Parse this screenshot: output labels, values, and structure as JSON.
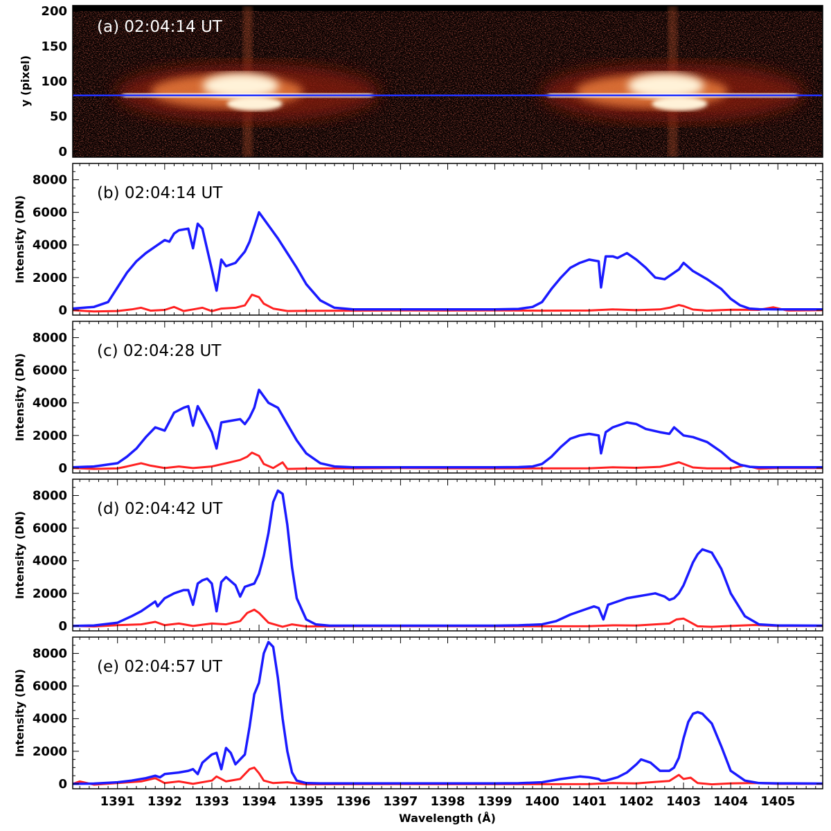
{
  "figure": {
    "xlabel": "Wavelength (Å)",
    "x_ticks": [
      1391,
      1392,
      1393,
      1394,
      1395,
      1396,
      1397,
      1398,
      1399,
      1400,
      1401,
      1402,
      1403,
      1404,
      1405
    ],
    "xlim": [
      1390.05,
      1405.95
    ]
  },
  "colors": {
    "spectrum": "#1a1aff",
    "difference": "#ff2020",
    "slit_line": "#2233ff"
  },
  "image_panel": {
    "label": "(a) 02:04:14 UT",
    "ylabel": "y (pixel)",
    "y_ticks": [
      0,
      50,
      100,
      150,
      200
    ],
    "ylim": [
      -8,
      208
    ],
    "colormap": "red-temperature",
    "slit_y": 80,
    "bright_lines_angstrom": [
      1393.76,
      1402.77
    ]
  },
  "chart_data": [
    {
      "type": "line",
      "panel": "(b) 02:04:14 UT",
      "xlabel": "",
      "ylabel": "Intensity (DN)",
      "y_ticks": [
        0,
        2000,
        4000,
        6000,
        8000
      ],
      "ylim": [
        -300,
        9000
      ],
      "series": [
        {
          "color": "#1a1aff",
          "x": [
            1390.05,
            1390.5,
            1390.8,
            1391.0,
            1391.2,
            1391.4,
            1391.6,
            1391.8,
            1392.0,
            1392.1,
            1392.2,
            1392.3,
            1392.5,
            1392.6,
            1392.7,
            1392.8,
            1393.0,
            1393.1,
            1393.2,
            1393.3,
            1393.5,
            1393.7,
            1393.8,
            1394.0,
            1394.2,
            1394.4,
            1394.6,
            1394.8,
            1395.0,
            1395.3,
            1395.6,
            1396.0,
            1397.0,
            1398.0,
            1399.0,
            1399.5,
            1399.8,
            1400.0,
            1400.2,
            1400.4,
            1400.6,
            1400.8,
            1401.0,
            1401.2,
            1401.25,
            1401.35,
            1401.5,
            1401.6,
            1401.8,
            1402.0,
            1402.2,
            1402.4,
            1402.6,
            1402.9,
            1403.0,
            1403.2,
            1403.5,
            1403.8,
            1404.0,
            1404.2,
            1404.4,
            1404.6,
            1405.0,
            1405.5,
            1405.95
          ],
          "y": [
            100,
            200,
            500,
            1400,
            2300,
            3000,
            3500,
            3900,
            4300,
            4200,
            4700,
            4900,
            5000,
            3800,
            5300,
            5000,
            2500,
            1200,
            3100,
            2700,
            2900,
            3600,
            4200,
            6000,
            5200,
            4400,
            3500,
            2600,
            1600,
            600,
            150,
            50,
            50,
            50,
            50,
            80,
            200,
            500,
            1300,
            2000,
            2600,
            2900,
            3100,
            3000,
            1400,
            3300,
            3300,
            3200,
            3500,
            3100,
            2600,
            2000,
            1900,
            2500,
            2900,
            2400,
            1900,
            1300,
            700,
            300,
            100,
            60,
            50,
            50,
            50
          ]
        },
        {
          "color": "#ff2020",
          "x": [
            1390.05,
            1390.5,
            1391.0,
            1391.3,
            1391.5,
            1391.7,
            1392.0,
            1392.2,
            1392.4,
            1392.6,
            1392.8,
            1393.0,
            1393.2,
            1393.5,
            1393.7,
            1393.85,
            1394.0,
            1394.1,
            1394.3,
            1394.6,
            1395.0,
            1396.0,
            1397.0,
            1398.0,
            1399.0,
            1400.0,
            1401.0,
            1401.5,
            1402.0,
            1402.5,
            1402.7,
            1402.9,
            1403.0,
            1403.2,
            1403.5,
            1404.0,
            1404.6,
            1404.9,
            1405.2,
            1405.95
          ],
          "y": [
            0,
            -80,
            -50,
            50,
            150,
            -30,
            20,
            200,
            -50,
            50,
            150,
            -60,
            100,
            150,
            300,
            950,
            800,
            400,
            100,
            -50,
            -40,
            -30,
            -10,
            -20,
            -10,
            -30,
            -20,
            50,
            0,
            50,
            150,
            320,
            250,
            40,
            -30,
            30,
            20,
            180,
            -20,
            0
          ]
        }
      ]
    },
    {
      "type": "line",
      "panel": "(c) 02:04:28 UT",
      "xlabel": "",
      "ylabel": "Intensity (DN)",
      "y_ticks": [
        0,
        2000,
        4000,
        6000,
        8000
      ],
      "ylim": [
        -300,
        9000
      ],
      "series": [
        {
          "color": "#1a1aff",
          "x": [
            1390.05,
            1390.5,
            1391.0,
            1391.2,
            1391.4,
            1391.6,
            1391.8,
            1392.0,
            1392.2,
            1392.4,
            1392.5,
            1392.6,
            1392.7,
            1392.8,
            1393.0,
            1393.1,
            1393.2,
            1393.4,
            1393.6,
            1393.7,
            1393.8,
            1393.9,
            1394.0,
            1394.2,
            1394.4,
            1394.6,
            1394.8,
            1395.0,
            1395.3,
            1395.6,
            1396.0,
            1397.0,
            1398.0,
            1399.0,
            1399.5,
            1399.8,
            1400.0,
            1400.2,
            1400.4,
            1400.6,
            1400.8,
            1401.0,
            1401.2,
            1401.25,
            1401.35,
            1401.5,
            1401.8,
            1402.0,
            1402.2,
            1402.5,
            1402.7,
            1402.8,
            1403.0,
            1403.2,
            1403.5,
            1403.8,
            1404.0,
            1404.2,
            1404.4,
            1404.6,
            1405.0,
            1405.5,
            1405.95
          ],
          "y": [
            50,
            100,
            300,
            700,
            1200,
            1900,
            2500,
            2300,
            3400,
            3700,
            3800,
            2600,
            3800,
            3300,
            2200,
            1200,
            2800,
            2900,
            3000,
            2700,
            3100,
            3700,
            4800,
            4000,
            3700,
            2700,
            1700,
            900,
            300,
            100,
            50,
            50,
            50,
            50,
            60,
            100,
            250,
            700,
            1300,
            1800,
            2000,
            2100,
            2000,
            900,
            2200,
            2500,
            2800,
            2700,
            2400,
            2200,
            2100,
            2500,
            2000,
            1900,
            1600,
            1000,
            500,
            200,
            80,
            50,
            50,
            50,
            50
          ]
        },
        {
          "color": "#ff2020",
          "x": [
            1390.05,
            1390.5,
            1391.0,
            1391.2,
            1391.5,
            1391.7,
            1392.0,
            1392.3,
            1392.6,
            1393.0,
            1393.3,
            1393.6,
            1393.75,
            1393.85,
            1394.0,
            1394.1,
            1394.3,
            1394.5,
            1394.6,
            1395.0,
            1396.0,
            1397.0,
            1398.0,
            1399.0,
            1400.0,
            1401.0,
            1401.5,
            1402.0,
            1402.5,
            1402.7,
            1402.9,
            1403.0,
            1403.2,
            1403.5,
            1404.0,
            1404.3,
            1404.6,
            1405.0,
            1405.95
          ],
          "y": [
            0,
            -50,
            -20,
            100,
            300,
            150,
            0,
            100,
            0,
            100,
            300,
            500,
            700,
            950,
            750,
            250,
            0,
            350,
            -50,
            -30,
            -20,
            0,
            -10,
            -20,
            -20,
            -10,
            50,
            20,
            80,
            200,
            360,
            250,
            40,
            -20,
            -20,
            160,
            -40,
            0,
            0
          ]
        }
      ]
    },
    {
      "type": "line",
      "panel": "(d) 02:04:42 UT",
      "xlabel": "",
      "ylabel": "Intensity (DN)",
      "y_ticks": [
        0,
        2000,
        4000,
        6000,
        8000
      ],
      "ylim": [
        -300,
        9000
      ],
      "series": [
        {
          "color": "#1a1aff",
          "x": [
            1390.05,
            1390.5,
            1391.0,
            1391.3,
            1391.5,
            1391.7,
            1391.8,
            1391.85,
            1392.0,
            1392.2,
            1392.4,
            1392.5,
            1392.6,
            1392.7,
            1392.8,
            1392.9,
            1393.0,
            1393.1,
            1393.2,
            1393.3,
            1393.5,
            1393.6,
            1393.7,
            1393.9,
            1394.0,
            1394.1,
            1394.2,
            1394.3,
            1394.4,
            1394.5,
            1394.6,
            1394.7,
            1394.8,
            1395.0,
            1395.2,
            1395.5,
            1396.0,
            1397.0,
            1398.0,
            1399.0,
            1399.5,
            1400.0,
            1400.3,
            1400.6,
            1400.9,
            1401.1,
            1401.2,
            1401.3,
            1401.4,
            1401.6,
            1401.8,
            1402.0,
            1402.2,
            1402.4,
            1402.6,
            1402.7,
            1402.8,
            1402.9,
            1403.0,
            1403.1,
            1403.2,
            1403.3,
            1403.4,
            1403.6,
            1403.8,
            1404.0,
            1404.3,
            1404.6,
            1405.0,
            1405.95
          ],
          "y": [
            0,
            30,
            200,
            600,
            900,
            1300,
            1500,
            1200,
            1700,
            2000,
            2200,
            2200,
            1300,
            2600,
            2800,
            2900,
            2600,
            900,
            2700,
            3000,
            2500,
            1800,
            2400,
            2600,
            3200,
            4300,
            5700,
            7600,
            8300,
            8100,
            6200,
            3600,
            1700,
            400,
            100,
            20,
            20,
            20,
            20,
            20,
            40,
            100,
            300,
            700,
            1000,
            1200,
            1100,
            400,
            1300,
            1500,
            1700,
            1800,
            1900,
            2000,
            1800,
            1600,
            1700,
            2000,
            2500,
            3200,
            3900,
            4400,
            4700,
            4500,
            3500,
            2000,
            600,
            100,
            30,
            20
          ]
        },
        {
          "color": "#ff2020",
          "x": [
            1390.05,
            1390.5,
            1391.0,
            1391.5,
            1391.8,
            1392.0,
            1392.3,
            1392.6,
            1393.0,
            1393.3,
            1393.6,
            1393.75,
            1393.9,
            1394.0,
            1394.2,
            1394.5,
            1394.7,
            1395.0,
            1396.0,
            1397.0,
            1398.0,
            1399.0,
            1400.0,
            1401.0,
            1401.5,
            1402.0,
            1402.4,
            1402.7,
            1402.85,
            1403.0,
            1403.1,
            1403.3,
            1403.6,
            1404.0,
            1404.5,
            1405.0,
            1405.95
          ],
          "y": [
            0,
            -30,
            50,
            100,
            250,
            50,
            150,
            0,
            150,
            100,
            300,
            800,
            1000,
            800,
            200,
            -50,
            100,
            -30,
            -10,
            -10,
            -10,
            -20,
            -20,
            -10,
            40,
            30,
            100,
            150,
            400,
            450,
            300,
            -20,
            -50,
            0,
            60,
            0,
            0
          ]
        }
      ]
    },
    {
      "type": "line",
      "panel": "(e) 02:04:57 UT",
      "xlabel": "Wavelength (Å)",
      "ylabel": "Intensity (DN)",
      "y_ticks": [
        0,
        2000,
        4000,
        6000,
        8000
      ],
      "ylim": [
        -300,
        9000
      ],
      "series": [
        {
          "color": "#1a1aff",
          "x": [
            1390.05,
            1390.5,
            1391.0,
            1391.3,
            1391.6,
            1391.8,
            1391.9,
            1392.0,
            1392.3,
            1392.5,
            1392.6,
            1392.7,
            1392.8,
            1393.0,
            1393.1,
            1393.2,
            1393.3,
            1393.4,
            1393.5,
            1393.7,
            1393.8,
            1393.9,
            1394.0,
            1394.1,
            1394.2,
            1394.3,
            1394.4,
            1394.5,
            1394.6,
            1394.7,
            1394.8,
            1395.0,
            1395.3,
            1396.0,
            1397.0,
            1398.0,
            1399.0,
            1399.5,
            1400.0,
            1400.4,
            1400.8,
            1401.0,
            1401.2,
            1401.25,
            1401.35,
            1401.6,
            1401.8,
            1402.0,
            1402.1,
            1402.3,
            1402.5,
            1402.7,
            1402.8,
            1402.9,
            1403.0,
            1403.1,
            1403.2,
            1403.3,
            1403.4,
            1403.6,
            1403.8,
            1404.0,
            1404.3,
            1404.6,
            1405.0,
            1405.95
          ],
          "y": [
            0,
            20,
            100,
            200,
            350,
            500,
            400,
            600,
            700,
            800,
            900,
            600,
            1300,
            1800,
            1900,
            900,
            2200,
            1900,
            1200,
            1800,
            3500,
            5500,
            6200,
            8000,
            8700,
            8400,
            6500,
            4000,
            2000,
            700,
            200,
            50,
            30,
            30,
            30,
            30,
            30,
            40,
            100,
            300,
            450,
            400,
            300,
            200,
            200,
            400,
            700,
            1200,
            1500,
            1300,
            800,
            800,
            1000,
            1600,
            2800,
            3800,
            4300,
            4400,
            4300,
            3700,
            2300,
            800,
            200,
            50,
            30,
            20
          ]
        },
        {
          "color": "#ff2020",
          "x": [
            1390.05,
            1390.2,
            1390.5,
            1391.0,
            1391.5,
            1391.8,
            1392.0,
            1392.3,
            1392.6,
            1393.0,
            1393.1,
            1393.3,
            1393.6,
            1393.8,
            1393.9,
            1394.0,
            1394.1,
            1394.3,
            1394.6,
            1395.0,
            1396.0,
            1397.0,
            1398.0,
            1399.0,
            1400.0,
            1401.0,
            1401.5,
            1402.0,
            1402.4,
            1402.7,
            1402.9,
            1403.0,
            1403.15,
            1403.3,
            1403.6,
            1404.0,
            1404.5,
            1405.0,
            1405.95
          ],
          "y": [
            0,
            150,
            -50,
            50,
            150,
            350,
            50,
            150,
            0,
            200,
            450,
            150,
            300,
            900,
            1000,
            650,
            200,
            50,
            100,
            -30,
            -20,
            -10,
            -20,
            -20,
            -20,
            -10,
            50,
            30,
            120,
            180,
            550,
            300,
            380,
            50,
            -30,
            30,
            50,
            0,
            0
          ]
        }
      ]
    }
  ]
}
